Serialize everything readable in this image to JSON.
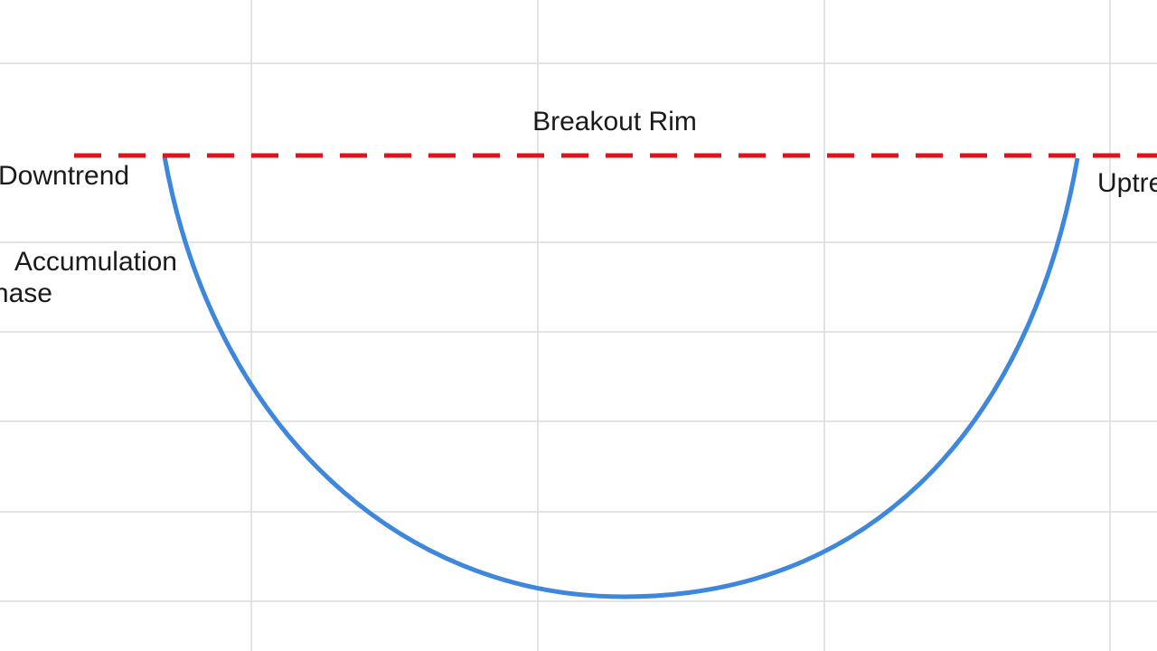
{
  "rim_label": "Breakout Rim",
  "left_label": "Downtrend",
  "phase_label": [
    "Accumulation",
    "Phase"
  ],
  "right_label": "Uptrend"
}
